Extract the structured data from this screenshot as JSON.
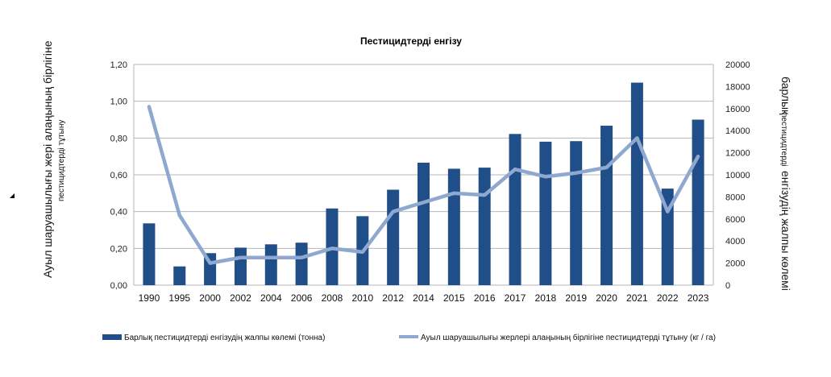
{
  "chart_data": {
    "type": "bar",
    "title": "Пестицидтерді енгізу",
    "categories": [
      "1990",
      "1995",
      "2000",
      "2002",
      "2004",
      "2006",
      "2008",
      "2010",
      "2012",
      "2014",
      "2015",
      "2016",
      "2017",
      "2018",
      "2019",
      "2020",
      "2021",
      "2022",
      "2023"
    ],
    "series": [
      {
        "name": "Барлық пестицидтерді енгізудің жалпы көлемі (тонна)",
        "type": "bar",
        "axis": "right",
        "color": "#1f4e88",
        "values": [
          5600,
          1700,
          2900,
          3400,
          3700,
          3850,
          6950,
          6250,
          8650,
          11100,
          10550,
          10650,
          13700,
          13000,
          13050,
          14450,
          18350,
          8750,
          15000
        ]
      },
      {
        "name": "Ауыл шаруашылығы жерлері алаңының бірлігіне пестицидтерді тұтыну (кг / га)",
        "type": "line",
        "axis": "left",
        "color": "#8ea8cf",
        "values": [
          0.97,
          0.38,
          0.12,
          0.15,
          0.15,
          0.15,
          0.2,
          0.18,
          0.4,
          0.45,
          0.5,
          0.49,
          0.63,
          0.59,
          0.61,
          0.64,
          0.8,
          0.4,
          0.7
        ]
      }
    ],
    "y_left": {
      "title_line1": "Ауыл шаруашылығы жері алаңының бірлігіне",
      "title_line2": "пестицидтерді тұтыну",
      "range": [
        0,
        1.2
      ],
      "ticks": [
        "0,00",
        "0,20",
        "0,40",
        "0,60",
        "0,80",
        "1,00",
        "1,20"
      ]
    },
    "y_right": {
      "title_line1": "барлық",
      "title_line2": "пестицидтерді",
      "title_line3": "енгізудің жалпы көлемі",
      "range": [
        0,
        20000
      ],
      "ticks": [
        "0",
        "2000",
        "4000",
        "6000",
        "8000",
        "10000",
        "12000",
        "14000",
        "16000",
        "18000",
        "20000"
      ]
    },
    "grid": true,
    "legend_position": "bottom"
  }
}
